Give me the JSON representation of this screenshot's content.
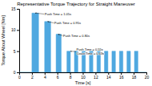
{
  "chart_data": {
    "type": "area",
    "title": "Representative Torque Trajectory for Straight Maneuver",
    "x_label": "Time [s]",
    "y_label": "Torque About Wheel [Nm]",
    "x": [
      0,
      2.0,
      3.05,
      4.0,
      4.95,
      5.8,
      6.6,
      7.5,
      8.05,
      8.68,
      9.23,
      9.86,
      10.41,
      11.04,
      11.59,
      12.22,
      12.77,
      13.4,
      13.95,
      14.58,
      15.13,
      15.76,
      16.31,
      16.94,
      17.49,
      18.12,
      18.67,
      20
    ],
    "values": [
      0,
      14,
      0,
      12,
      0,
      9,
      0,
      5,
      0,
      5,
      0,
      5,
      0,
      5,
      0,
      5,
      0,
      5,
      0,
      5,
      0,
      5,
      0,
      5,
      0,
      5,
      0,
      0
    ],
    "color": "#4FA8E0",
    "line_style": "step",
    "xlim": [
      0,
      20
    ],
    "ylim": [
      0,
      15
    ],
    "xticks": [
      0,
      2,
      4,
      6,
      8,
      10,
      12,
      14,
      16,
      18,
      20
    ],
    "yticks": [
      0,
      5,
      10,
      15
    ],
    "annotations": [
      {
        "text": "Push Time = 1.05s",
        "xy": [
          2.52,
          14.0
        ],
        "xytext": [
          4.0,
          13.5
        ]
      },
      {
        "text": "Push Time = 0.95s",
        "xy": [
          4.47,
          12.0
        ],
        "xytext": [
          5.5,
          11.4
        ]
      },
      {
        "text": "Push Time = 0.80s",
        "xy": [
          6.12,
          9.0
        ],
        "xytext": [
          6.9,
          8.4
        ]
      },
      {
        "text": "Push Time = 0.55s\nCoast Time = 0.63s",
        "xy": [
          8.05,
          5.0
        ],
        "xytext": [
          9.0,
          4.2
        ]
      }
    ]
  }
}
